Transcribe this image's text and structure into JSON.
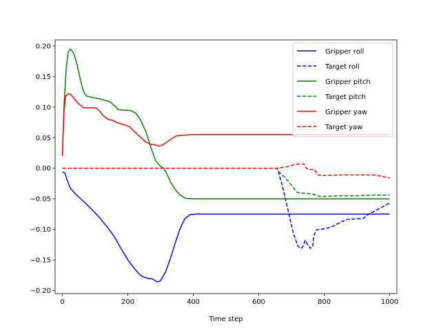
{
  "chart_data": {
    "type": "line",
    "title": "",
    "xlabel": "Time step",
    "ylabel": "",
    "xlim": [
      -22,
      1022
    ],
    "ylim": [
      -0.205,
      0.21
    ],
    "xticks": [
      0,
      200,
      400,
      600,
      800,
      1000
    ],
    "yticks": [
      -0.2,
      -0.15,
      -0.1,
      -0.05,
      0.0,
      0.05,
      0.1,
      0.15,
      0.2
    ],
    "ytick_labels": [
      "−0.20",
      "−0.15",
      "−0.10",
      "−0.05",
      "0.00",
      "0.05",
      "0.10",
      "0.15",
      "0.20"
    ],
    "grid": false,
    "legend_position": "top-right",
    "series": [
      {
        "name": "Gripper roll",
        "color": "#0000ff",
        "dash": "solid",
        "points": [
          [
            0,
            -0.006
          ],
          [
            8,
            -0.008
          ],
          [
            15,
            -0.02
          ],
          [
            25,
            -0.033
          ],
          [
            40,
            -0.042
          ],
          [
            60,
            -0.052
          ],
          [
            80,
            -0.062
          ],
          [
            100,
            -0.073
          ],
          [
            120,
            -0.085
          ],
          [
            140,
            -0.098
          ],
          [
            160,
            -0.113
          ],
          [
            180,
            -0.132
          ],
          [
            200,
            -0.15
          ],
          [
            220,
            -0.164
          ],
          [
            240,
            -0.176
          ],
          [
            260,
            -0.18
          ],
          [
            275,
            -0.181
          ],
          [
            290,
            -0.186
          ],
          [
            300,
            -0.184
          ],
          [
            315,
            -0.17
          ],
          [
            330,
            -0.148
          ],
          [
            345,
            -0.122
          ],
          [
            360,
            -0.098
          ],
          [
            375,
            -0.082
          ],
          [
            390,
            -0.076
          ],
          [
            410,
            -0.075
          ],
          [
            500,
            -0.075
          ],
          [
            650,
            -0.075
          ],
          [
            800,
            -0.075
          ],
          [
            1000,
            -0.075
          ]
        ]
      },
      {
        "name": "Target roll",
        "color": "#0000ff",
        "dash": "dashed",
        "points": [
          [
            0,
            0.0
          ],
          [
            655,
            0.0
          ],
          [
            660,
            -0.005
          ],
          [
            675,
            -0.035
          ],
          [
            690,
            -0.07
          ],
          [
            705,
            -0.105
          ],
          [
            720,
            -0.128
          ],
          [
            730,
            -0.131
          ],
          [
            735,
            -0.128
          ],
          [
            742,
            -0.118
          ],
          [
            750,
            -0.126
          ],
          [
            758,
            -0.131
          ],
          [
            765,
            -0.128
          ],
          [
            768,
            -0.112
          ],
          [
            775,
            -0.101
          ],
          [
            790,
            -0.1
          ],
          [
            810,
            -0.098
          ],
          [
            830,
            -0.094
          ],
          [
            850,
            -0.088
          ],
          [
            870,
            -0.084
          ],
          [
            890,
            -0.083
          ],
          [
            920,
            -0.082
          ],
          [
            935,
            -0.075
          ],
          [
            955,
            -0.07
          ],
          [
            975,
            -0.064
          ],
          [
            1000,
            -0.057
          ]
        ]
      },
      {
        "name": "Gripper pitch",
        "color": "#008000",
        "dash": "solid",
        "points": [
          [
            0,
            0.02
          ],
          [
            5,
            0.1
          ],
          [
            12,
            0.165
          ],
          [
            18,
            0.19
          ],
          [
            25,
            0.195
          ],
          [
            35,
            0.188
          ],
          [
            45,
            0.17
          ],
          [
            55,
            0.145
          ],
          [
            65,
            0.125
          ],
          [
            75,
            0.118
          ],
          [
            90,
            0.116
          ],
          [
            110,
            0.114
          ],
          [
            130,
            0.111
          ],
          [
            145,
            0.109
          ],
          [
            160,
            0.102
          ],
          [
            170,
            0.096
          ],
          [
            185,
            0.095
          ],
          [
            200,
            0.095
          ],
          [
            210,
            0.094
          ],
          [
            225,
            0.09
          ],
          [
            240,
            0.078
          ],
          [
            255,
            0.06
          ],
          [
            270,
            0.035
          ],
          [
            285,
            0.012
          ],
          [
            300,
            0.003
          ],
          [
            310,
            0.0
          ],
          [
            320,
            -0.01
          ],
          [
            330,
            -0.022
          ],
          [
            345,
            -0.035
          ],
          [
            360,
            -0.044
          ],
          [
            375,
            -0.049
          ],
          [
            400,
            -0.05
          ],
          [
            500,
            -0.05
          ],
          [
            700,
            -0.05
          ],
          [
            1000,
            -0.05
          ]
        ]
      },
      {
        "name": "Target pitch",
        "color": "#008000",
        "dash": "dashed",
        "points": [
          [
            0,
            0.0
          ],
          [
            655,
            0.0
          ],
          [
            660,
            -0.005
          ],
          [
            680,
            -0.015
          ],
          [
            700,
            -0.028
          ],
          [
            715,
            -0.038
          ],
          [
            720,
            -0.04
          ],
          [
            740,
            -0.041
          ],
          [
            760,
            -0.042
          ],
          [
            770,
            -0.043
          ],
          [
            785,
            -0.046
          ],
          [
            800,
            -0.046
          ],
          [
            850,
            -0.045
          ],
          [
            900,
            -0.045
          ],
          [
            950,
            -0.044
          ],
          [
            1000,
            -0.044
          ]
        ]
      },
      {
        "name": "Gripper yaw",
        "color": "#ff0000",
        "dash": "solid",
        "points": [
          [
            0,
            0.02
          ],
          [
            5,
            0.09
          ],
          [
            10,
            0.118
          ],
          [
            18,
            0.122
          ],
          [
            25,
            0.121
          ],
          [
            35,
            0.115
          ],
          [
            45,
            0.108
          ],
          [
            55,
            0.103
          ],
          [
            65,
            0.099
          ],
          [
            80,
            0.099
          ],
          [
            95,
            0.099
          ],
          [
            105,
            0.098
          ],
          [
            115,
            0.093
          ],
          [
            125,
            0.086
          ],
          [
            140,
            0.08
          ],
          [
            155,
            0.078
          ],
          [
            170,
            0.074
          ],
          [
            190,
            0.071
          ],
          [
            205,
            0.068
          ],
          [
            220,
            0.06
          ],
          [
            240,
            0.05
          ],
          [
            255,
            0.043
          ],
          [
            270,
            0.039
          ],
          [
            285,
            0.038
          ],
          [
            295,
            0.036
          ],
          [
            305,
            0.038
          ],
          [
            320,
            0.043
          ],
          [
            335,
            0.049
          ],
          [
            350,
            0.053
          ],
          [
            365,
            0.054
          ],
          [
            400,
            0.055
          ],
          [
            500,
            0.055
          ],
          [
            700,
            0.055
          ],
          [
            1000,
            0.055
          ]
        ]
      },
      {
        "name": "Target yaw",
        "color": "#ff0000",
        "dash": "dashed",
        "points": [
          [
            0,
            0.0
          ],
          [
            655,
            0.0
          ],
          [
            670,
            0.001
          ],
          [
            690,
            0.003
          ],
          [
            710,
            0.006
          ],
          [
            725,
            0.007
          ],
          [
            735,
            0.007
          ],
          [
            740,
            0.006
          ],
          [
            745,
            0.0
          ],
          [
            755,
            -0.002
          ],
          [
            770,
            -0.002
          ],
          [
            780,
            -0.011
          ],
          [
            800,
            -0.012
          ],
          [
            850,
            -0.011
          ],
          [
            900,
            -0.011
          ],
          [
            950,
            -0.011
          ],
          [
            975,
            -0.013
          ],
          [
            1000,
            -0.016
          ]
        ]
      }
    ]
  }
}
